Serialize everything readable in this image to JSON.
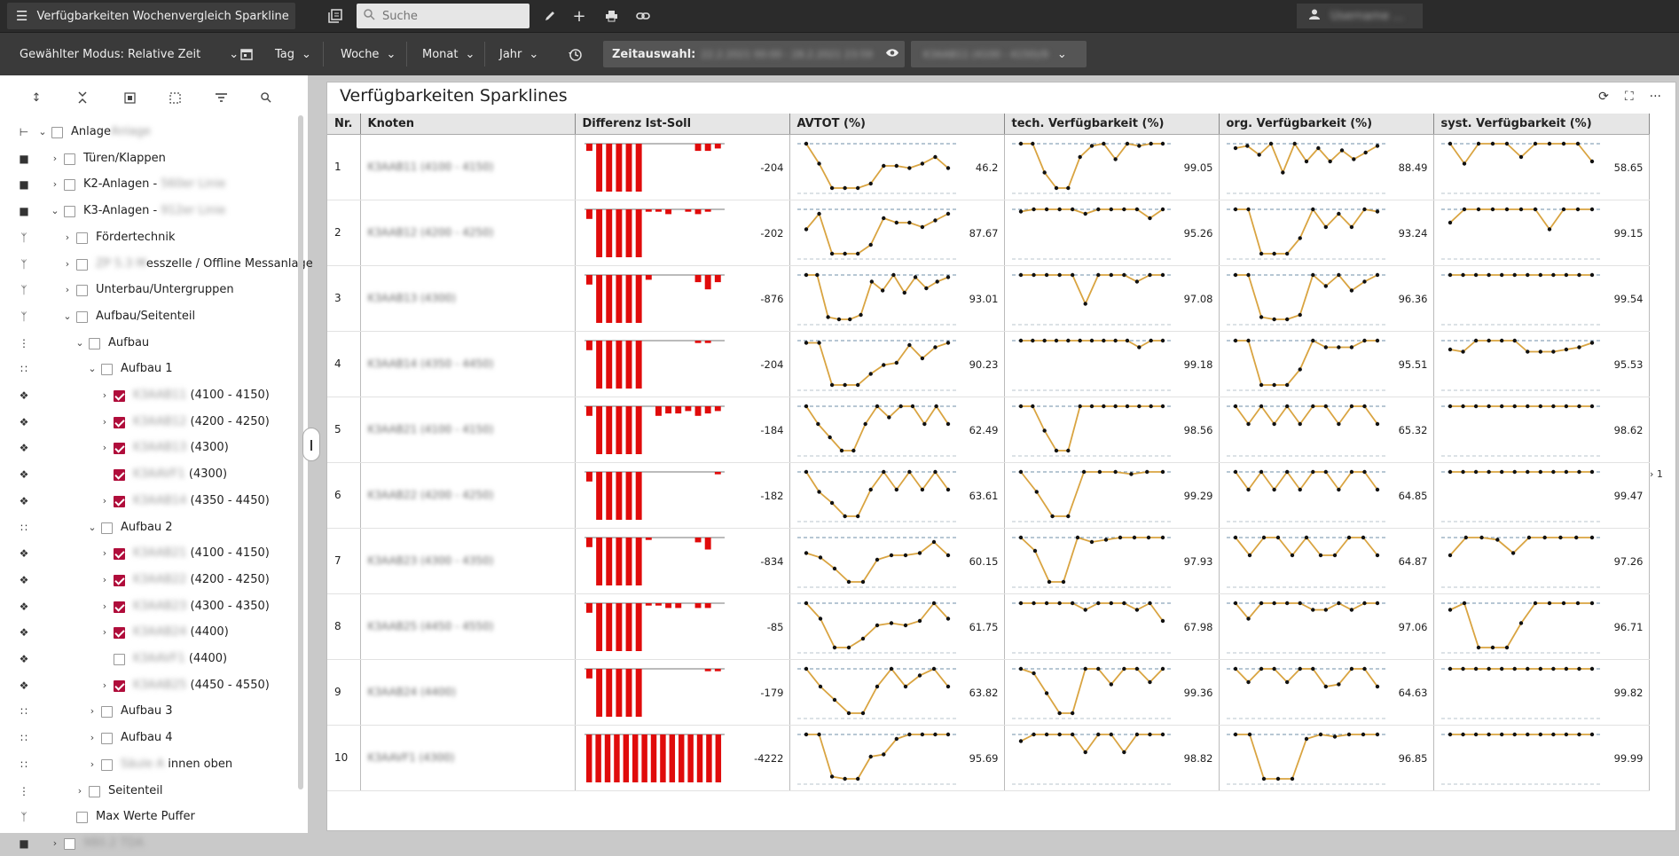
{
  "header": {
    "app_title": "Verfügbarkeiten Wochenvergleich Sparkline",
    "search_placeholder": "Suche",
    "user_name": "Username ..."
  },
  "toolbar": {
    "mode": "Gewählter Modus: Relative Zeit",
    "periods": [
      "Tag",
      "Woche",
      "Monat",
      "Jahr"
    ],
    "zeit_label": "Zeitauswahl:",
    "zeit_value": "22.2.2021 00:00 - 28.2.2021 23:59",
    "node_selection": "K3AAB11 (4100 - 4150)/9"
  },
  "sidebar": {
    "tree": [
      {
        "label": "Anlage",
        "blur": "Anlage",
        "suffix": "",
        "type": "root",
        "indent": 0,
        "chevron": "down",
        "checked": false
      },
      {
        "label": "Türen/Klappen",
        "blur": "",
        "suffix": "",
        "type": "plant",
        "indent": 1,
        "chevron": "right",
        "checked": false
      },
      {
        "label": "K2-Anlagen - ",
        "blur": "560er Linie",
        "suffix": "",
        "type": "plant",
        "indent": 1,
        "chevron": "right",
        "checked": false
      },
      {
        "label": "K3-Anlagen - ",
        "blur": "912er Linie",
        "suffix": "",
        "type": "plant",
        "indent": 1,
        "chevron": "down",
        "checked": false
      },
      {
        "label": "Fördertechnik",
        "blur": "",
        "suffix": "",
        "type": "branch",
        "indent": 2,
        "chevron": "right",
        "checked": false
      },
      {
        "label": "",
        "blur": "ZP 5.3 M",
        "suffix": "esszelle / Offline Messanlage",
        "type": "branch",
        "indent": 2,
        "chevron": "right",
        "checked": false
      },
      {
        "label": "Unterbau/Untergruppen",
        "blur": "",
        "suffix": "",
        "type": "branch",
        "indent": 2,
        "chevron": "right",
        "checked": false
      },
      {
        "label": "Aufbau/Seitenteil",
        "blur": "",
        "suffix": "",
        "type": "branch",
        "indent": 2,
        "chevron": "down",
        "checked": false
      },
      {
        "label": "Aufbau",
        "blur": "",
        "suffix": "",
        "type": "line",
        "indent": 3,
        "chevron": "down",
        "checked": false
      },
      {
        "label": "Aufbau 1",
        "blur": "",
        "suffix": "",
        "type": "dual",
        "indent": 4,
        "chevron": "down",
        "checked": false
      },
      {
        "label": "",
        "blur": "K3AAB11",
        "suffix": " (4100 - 4150)",
        "type": "robot",
        "indent": 5,
        "chevron": "right",
        "checked": true
      },
      {
        "label": "",
        "blur": "K3AAB12",
        "suffix": " (4200 - 4250)",
        "type": "robot",
        "indent": 5,
        "chevron": "right",
        "checked": true
      },
      {
        "label": "",
        "blur": "K3AAB13",
        "suffix": " (4300)",
        "type": "robot",
        "indent": 5,
        "chevron": "right",
        "checked": true
      },
      {
        "label": "",
        "blur": "K3AAVF1",
        "suffix": " (4300)",
        "type": "robot",
        "indent": 5,
        "chevron": "none",
        "checked": true
      },
      {
        "label": "",
        "blur": "K3AAB14",
        "suffix": " (4350 - 4450)",
        "type": "robot",
        "indent": 5,
        "chevron": "right",
        "checked": true
      },
      {
        "label": "Aufbau 2",
        "blur": "",
        "suffix": "",
        "type": "dual",
        "indent": 4,
        "chevron": "down",
        "checked": false
      },
      {
        "label": "",
        "blur": "K3AAB21",
        "suffix": " (4100 - 4150)",
        "type": "robot",
        "indent": 5,
        "chevron": "right",
        "checked": true
      },
      {
        "label": "",
        "blur": "K3AAB22",
        "suffix": " (4200 - 4250)",
        "type": "robot",
        "indent": 5,
        "chevron": "right",
        "checked": true
      },
      {
        "label": "",
        "blur": "K3AAB23",
        "suffix": " (4300 - 4350)",
        "type": "robot",
        "indent": 5,
        "chevron": "right",
        "checked": true
      },
      {
        "label": "",
        "blur": "K3AAB24",
        "suffix": " (4400)",
        "type": "robot",
        "indent": 5,
        "chevron": "right",
        "checked": true
      },
      {
        "label": "",
        "blur": "K3AAVF1",
        "suffix": " (4400)",
        "type": "robot",
        "indent": 5,
        "chevron": "none",
        "checked": false
      },
      {
        "label": "",
        "blur": "K3AAB25",
        "suffix": " (4450 - 4550)",
        "type": "robot",
        "indent": 5,
        "chevron": "right",
        "checked": true
      },
      {
        "label": "Aufbau 3",
        "blur": "",
        "suffix": "",
        "type": "dual",
        "indent": 4,
        "chevron": "right",
        "checked": false
      },
      {
        "label": "Aufbau 4",
        "blur": "",
        "suffix": "",
        "type": "dual",
        "indent": 4,
        "chevron": "right",
        "checked": false
      },
      {
        "label": "",
        "blur": "Säule A",
        "suffix": " innen oben",
        "type": "dual",
        "indent": 4,
        "chevron": "right",
        "checked": false
      },
      {
        "label": "Seitenteil",
        "blur": "",
        "suffix": "",
        "type": "line",
        "indent": 3,
        "chevron": "right",
        "checked": false
      },
      {
        "label": "Max Werte Puffer",
        "blur": "",
        "suffix": "",
        "type": "branch",
        "indent": 2,
        "chevron": "none",
        "checked": false
      },
      {
        "label": "",
        "blur": "980.2 TDA",
        "suffix": "",
        "type": "plant",
        "indent": 1,
        "chevron": "right",
        "checked": false
      }
    ]
  },
  "panel": {
    "title": "Verfügbarkeiten Sparklines",
    "columns": [
      "Nr.",
      "Knoten",
      "Differenz Ist-Soll",
      "AVTOT (%)",
      "tech. Verfügbarkeit (%)",
      "org. Verfügbarkeit (%)",
      "syst. Verfügbarkeit (%)"
    ],
    "page_indicator": "1"
  },
  "chart_data": {
    "type": "table",
    "rows": [
      {
        "nr": "1",
        "knoten": "K3AAB11 (4100 - 4150)",
        "diff": "-204",
        "avtot": "46.2",
        "tech": "99.05",
        "org": "88.49",
        "syst": "58.65",
        "diff_bars": [
          -0.15,
          -1,
          -1,
          -1,
          -1,
          -1,
          0,
          0,
          0,
          0,
          0,
          -0.15,
          -0.15,
          -0.1
        ],
        "avtot_series": [
          1,
          0.55,
          0,
          0,
          0,
          0.1,
          0.5,
          0.5,
          0.45,
          0.55,
          0.7,
          0.45
        ],
        "tech_series": [
          1,
          1,
          0.35,
          0,
          0,
          0.7,
          0.95,
          1,
          0.65,
          1,
          0.95,
          1,
          1
        ],
        "org_series": [
          0.9,
          0.95,
          0.75,
          1,
          0.35,
          1,
          0.6,
          0.9,
          0.6,
          0.85,
          0.65,
          0.8,
          0.95
        ],
        "syst_series": [
          1,
          0.55,
          1,
          1,
          1,
          0.7,
          1,
          1,
          1,
          1,
          0.6
        ]
      },
      {
        "nr": "2",
        "knoten": "K3AAB12 (4200 - 4250)",
        "diff": "-202",
        "avtot": "87.67",
        "tech": "95.26",
        "org": "93.24",
        "syst": "99.15",
        "diff_bars": [
          -0.2,
          -1,
          -1,
          -1,
          -1,
          -1,
          -0.05,
          -0.05,
          -0.1,
          0,
          -0.05,
          -0.1,
          -0.05
        ],
        "avtot_series": [
          0.55,
          0.9,
          0,
          0,
          0,
          0.2,
          0.8,
          0.7,
          0.7,
          0.6,
          0.75,
          0.9
        ],
        "tech_series": [
          0.95,
          1,
          1,
          1,
          1,
          0.9,
          1,
          1,
          1,
          1,
          0.8,
          1
        ],
        "org_series": [
          1,
          1,
          0,
          0,
          0,
          0.35,
          1,
          0.6,
          0.9,
          0.6,
          1,
          0.95
        ],
        "syst_series": [
          0.7,
          1,
          1,
          1,
          1,
          1,
          1,
          0.55,
          1,
          1,
          1
        ]
      },
      {
        "nr": "3",
        "knoten": "K3AAB13 (4300)",
        "diff": "-876",
        "avtot": "93.01",
        "tech": "97.08",
        "org": "96.36",
        "syst": "99.54",
        "diff_bars": [
          -0.2,
          -1,
          -1,
          -1,
          -1,
          -1,
          -0.1,
          0,
          0,
          0,
          0,
          -0.15,
          -0.3,
          -0.15
        ],
        "avtot_series": [
          1,
          1,
          0.05,
          0,
          0,
          0.1,
          0.85,
          0.65,
          1,
          0.6,
          0.95,
          0.7,
          0.85,
          0.95
        ],
        "tech_series": [
          1,
          1,
          1,
          1,
          1,
          0.35,
          1,
          1,
          1,
          0.85,
          1,
          1
        ],
        "org_series": [
          1,
          1,
          0.05,
          0,
          0,
          0.1,
          1,
          0.75,
          1,
          0.65,
          0.85,
          1
        ],
        "syst_series": [
          1,
          1,
          1,
          1,
          1,
          1,
          1,
          1,
          1,
          1,
          1,
          1
        ]
      },
      {
        "nr": "4",
        "knoten": "K3AAB14 (4350 - 4450)",
        "diff": "-204",
        "avtot": "90.23",
        "tech": "99.18",
        "org": "95.51",
        "syst": "95.53",
        "diff_bars": [
          -0.2,
          -1,
          -1,
          -1,
          -1,
          -1,
          0,
          0,
          0,
          0,
          0,
          -0.05,
          -0.05
        ],
        "avtot_series": [
          0.95,
          0.95,
          0,
          0,
          0,
          0.25,
          0.45,
          0.5,
          0.9,
          0.6,
          0.85,
          0.95
        ],
        "tech_series": [
          1,
          1,
          1,
          1,
          1,
          1,
          1,
          1,
          1,
          1,
          0.85,
          1,
          1
        ],
        "org_series": [
          1,
          1,
          0,
          0,
          0,
          0.35,
          1,
          0.85,
          0.85,
          0.85,
          1,
          1
        ],
        "syst_series": [
          0.8,
          0.75,
          1,
          1,
          1,
          1,
          0.75,
          0.75,
          0.75,
          0.8,
          0.85,
          0.95
        ]
      },
      {
        "nr": "5",
        "knoten": "K3AAB21 (4100 - 4150)",
        "diff": "-184",
        "avtot": "62.49",
        "tech": "98.56",
        "org": "65.32",
        "syst": "98.62",
        "diff_bars": [
          -0.2,
          -1,
          -1,
          -1,
          -1,
          -1,
          0,
          -0.2,
          -0.15,
          -0.15,
          -0.1,
          -0.2,
          -0.15,
          -0.1
        ],
        "avtot_series": [
          1,
          0.6,
          0.3,
          0,
          0,
          0.6,
          1,
          0.75,
          1,
          1,
          0.6,
          1,
          0.6
        ],
        "tech_series": [
          1,
          1,
          0.45,
          0,
          0,
          1,
          1,
          1,
          1,
          1,
          1,
          1,
          1
        ],
        "org_series": [
          1,
          0.6,
          1,
          0.6,
          1,
          0.6,
          1,
          1,
          0.6,
          1,
          1,
          0.6
        ],
        "syst_series": [
          1,
          1,
          1,
          1,
          1,
          1,
          1,
          1,
          1,
          1,
          1,
          1
        ]
      },
      {
        "nr": "6",
        "knoten": "K3AAB22 (4200 - 4250)",
        "diff": "-182",
        "avtot": "63.61",
        "tech": "99.29",
        "org": "64.85",
        "syst": "99.47",
        "diff_bars": [
          -0.2,
          -1,
          -1,
          -1,
          -1,
          -1,
          0,
          0,
          0,
          0,
          0,
          0,
          0,
          -0.05
        ],
        "avtot_series": [
          1,
          0.55,
          0.3,
          0,
          0,
          0.6,
          1,
          0.6,
          1,
          0.6,
          1,
          0.6
        ],
        "tech_series": [
          1,
          0.55,
          0,
          0,
          1,
          1,
          1,
          0.95,
          1,
          1
        ],
        "org_series": [
          1,
          0.6,
          1,
          0.6,
          1,
          0.6,
          1,
          1,
          0.6,
          1,
          1,
          0.6
        ],
        "syst_series": [
          1,
          1,
          1,
          1,
          1,
          1,
          1,
          1,
          1,
          1,
          1,
          1
        ]
      },
      {
        "nr": "7",
        "knoten": "K3AAB23 (4300 - 4350)",
        "diff": "-834",
        "avtot": "60.15",
        "tech": "97.93",
        "org": "64.87",
        "syst": "97.26",
        "diff_bars": [
          -0.2,
          -1,
          -1,
          -1,
          -1,
          -1,
          -0.05,
          0,
          0,
          0,
          0,
          -0.1,
          -0.25
        ],
        "avtot_series": [
          0.65,
          0.55,
          0.3,
          0,
          0,
          0.5,
          0.6,
          0.6,
          0.65,
          0.9,
          0.6
        ],
        "tech_series": [
          1,
          0.7,
          0,
          0,
          1,
          0.9,
          0.95,
          1,
          1,
          1,
          1
        ],
        "org_series": [
          1,
          0.6,
          1,
          1,
          0.6,
          1,
          0.6,
          0.6,
          1,
          1,
          0.6
        ],
        "syst_series": [
          0.6,
          1,
          1,
          0.95,
          0.65,
          1,
          1,
          1,
          1,
          1
        ]
      },
      {
        "nr": "8",
        "knoten": "K3AAB25 (4450 - 4550)",
        "diff": "-85",
        "avtot": "61.75",
        "tech": "67.98",
        "org": "97.06",
        "syst": "96.71",
        "diff_bars": [
          -0.2,
          -1,
          -1,
          -1,
          -1,
          -1,
          -0.05,
          -0.05,
          -0.1,
          -0.1,
          0,
          -0.1,
          -0.1
        ],
        "avtot_series": [
          1,
          0.65,
          0,
          0,
          0.2,
          0.5,
          0.55,
          0.5,
          0.6,
          1,
          0.65
        ],
        "tech_series": [
          1,
          1,
          1,
          1,
          1,
          0.85,
          1,
          1,
          1,
          0.85,
          1,
          0.6
        ],
        "org_series": [
          1,
          0.65,
          1,
          1,
          1,
          1,
          0.85,
          0.85,
          1,
          0.85,
          1,
          1
        ],
        "syst_series": [
          0.85,
          1,
          0,
          0,
          0,
          0.55,
          1,
          1,
          1,
          1,
          1
        ]
      },
      {
        "nr": "9",
        "knoten": "K3AAB24 (4400)",
        "diff": "-179",
        "avtot": "63.82",
        "tech": "99.36",
        "org": "64.63",
        "syst": "99.82",
        "diff_bars": [
          -0.2,
          -1,
          -1,
          -1,
          -1,
          -1,
          0,
          0,
          0,
          0,
          0,
          0,
          -0.05,
          -0.05
        ],
        "avtot_series": [
          1,
          0.6,
          0.3,
          0,
          0,
          0.6,
          1,
          0.6,
          0.85,
          1,
          0.6
        ],
        "tech_series": [
          1,
          0.9,
          0.45,
          0,
          0,
          1,
          1,
          0.65,
          1,
          1,
          0.7,
          1
        ],
        "org_series": [
          1,
          0.7,
          1,
          1,
          0.7,
          1,
          1,
          0.6,
          0.65,
          1,
          1,
          0.6
        ],
        "syst_series": [
          1,
          1,
          1,
          1,
          1,
          1,
          1,
          1,
          1,
          1,
          1,
          1
        ]
      },
      {
        "nr": "10",
        "knoten": "K3AAVF1 (4300)",
        "diff": "-4222",
        "avtot": "95.69",
        "tech": "98.82",
        "org": "96.85",
        "syst": "99.99",
        "diff_bars": [
          -1,
          -1,
          -1,
          -1,
          -1,
          -1,
          -1,
          -1,
          -1,
          -1,
          -1,
          -1,
          -1,
          -1,
          -1
        ],
        "avtot_series": [
          1,
          1,
          0.05,
          0,
          0,
          0.5,
          0.55,
          0.9,
          1,
          1,
          1,
          1
        ],
        "tech_series": [
          0.85,
          1,
          1,
          1,
          1,
          0.6,
          1,
          1,
          0.6,
          1,
          1,
          1
        ],
        "org_series": [
          1,
          1,
          0,
          0,
          0,
          0.9,
          1,
          0.95,
          1,
          1,
          1
        ],
        "syst_series": [
          1,
          1,
          1,
          1,
          1,
          1,
          1,
          1,
          1,
          1,
          1,
          1
        ]
      }
    ]
  }
}
